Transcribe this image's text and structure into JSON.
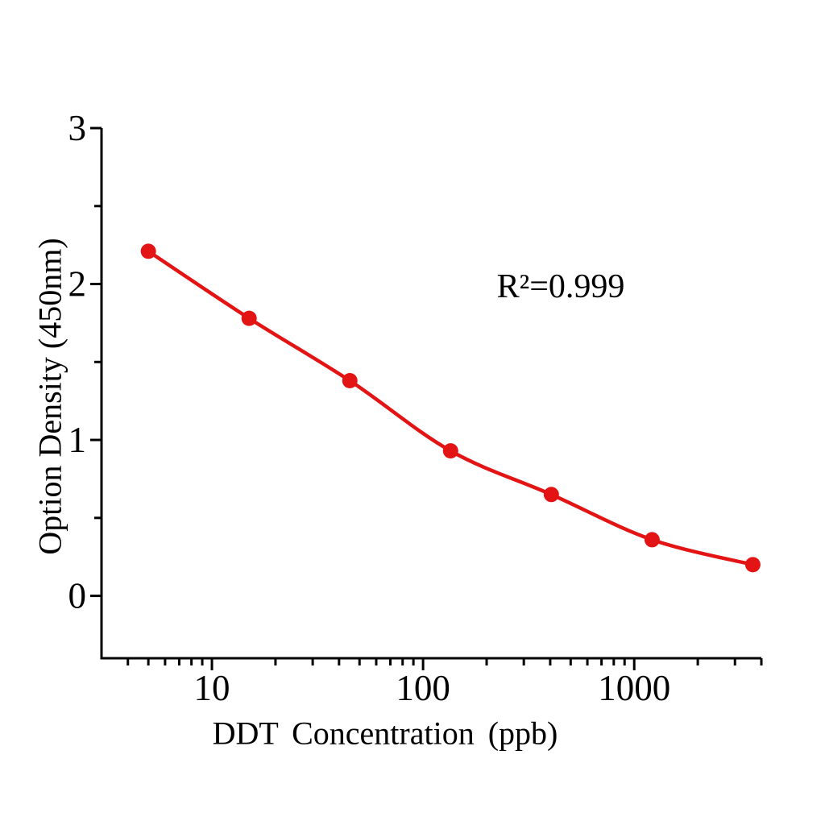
{
  "figure": {
    "background": "#ffffff"
  },
  "chart_data": {
    "type": "scatter",
    "xlabel": "DDT Concentration（ppb）",
    "ylabel": "Option Density（450nm）",
    "annotation": "R²=0.999",
    "x_scale": "log",
    "y_scale": "linear",
    "x": [
      5,
      15,
      45,
      135,
      405,
      1215,
      3645
    ],
    "y": [
      2.21,
      1.78,
      1.38,
      0.93,
      0.65,
      0.36,
      0.2
    ],
    "xlim": [
      3,
      4000
    ],
    "ylim": [
      -0.4,
      3.0
    ],
    "x_ticks": [
      10,
      100,
      1000
    ],
    "x_tick_labels": [
      "10",
      "100",
      "1000"
    ],
    "x_minor_ticks": [
      4,
      5,
      6,
      7,
      8,
      9,
      20,
      30,
      40,
      50,
      60,
      70,
      80,
      90,
      200,
      300,
      400,
      500,
      600,
      700,
      800,
      900,
      2000,
      3000,
      4000
    ],
    "y_ticks": [
      0,
      1,
      2,
      3
    ],
    "y_tick_labels": [
      "0",
      "1",
      "2",
      "3"
    ],
    "y_minor_ticks": [
      0.5,
      1.5,
      2.5
    ],
    "grid": false,
    "legend": null,
    "line_color": "#e21414",
    "marker_color": "#e21414",
    "axis_color": "#000000"
  }
}
